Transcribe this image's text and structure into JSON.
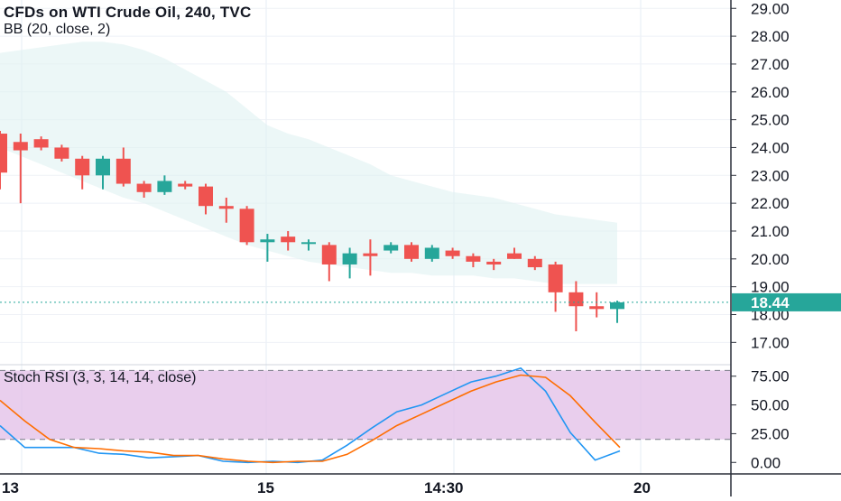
{
  "header": {
    "title": "CFDs on WTI Crude Oil, 240, TVC",
    "indicator": "BB (20, close, 2)",
    "oscillator": "Stoch RSI (3, 3, 14, 14, close)"
  },
  "price_axis": {
    "ticks": [
      "29.00",
      "28.00",
      "27.00",
      "26.00",
      "25.00",
      "24.00",
      "23.00",
      "22.00",
      "21.00",
      "20.00",
      "19.00",
      "18.00",
      "17.00"
    ],
    "last_price_label": "18.44"
  },
  "osc_axis": {
    "ticks": [
      "75.00",
      "50.00",
      "25.00",
      "0.00"
    ]
  },
  "time_axis": {
    "ticks": [
      "13",
      "15",
      "14:30",
      "20"
    ]
  },
  "colors": {
    "up": "#26a69a",
    "down": "#ef5350",
    "bb_fill": "#e0f2f1",
    "stoch_k": "#2196f3",
    "stoch_d": "#ff6d00",
    "osc_band": "#e1bee7",
    "last_price": "#26a69a"
  },
  "chart_data": [
    {
      "type": "candlestick",
      "title": "CFDs on WTI Crude Oil, 240, TVC",
      "ylim": [
        16.2,
        29.3
      ],
      "candles": [
        {
          "o": 24.5,
          "h": 24.6,
          "l": 22.5,
          "c": 23.1
        },
        {
          "o": 24.2,
          "h": 24.5,
          "l": 22.0,
          "c": 23.9
        },
        {
          "o": 24.3,
          "h": 24.4,
          "l": 23.9,
          "c": 24.0
        },
        {
          "o": 24.0,
          "h": 24.1,
          "l": 23.5,
          "c": 23.6
        },
        {
          "o": 23.6,
          "h": 23.7,
          "l": 22.5,
          "c": 23.0
        },
        {
          "o": 23.0,
          "h": 23.7,
          "l": 22.5,
          "c": 23.6
        },
        {
          "o": 23.6,
          "h": 24.0,
          "l": 22.6,
          "c": 22.7
        },
        {
          "o": 22.7,
          "h": 22.8,
          "l": 22.2,
          "c": 22.4
        },
        {
          "o": 22.4,
          "h": 23.0,
          "l": 22.3,
          "c": 22.8
        },
        {
          "o": 22.7,
          "h": 22.8,
          "l": 22.5,
          "c": 22.6
        },
        {
          "o": 22.6,
          "h": 22.7,
          "l": 21.6,
          "c": 21.9
        },
        {
          "o": 21.9,
          "h": 22.2,
          "l": 21.3,
          "c": 21.8
        },
        {
          "o": 21.8,
          "h": 21.9,
          "l": 20.5,
          "c": 20.6
        },
        {
          "o": 20.6,
          "h": 20.9,
          "l": 19.9,
          "c": 20.7
        },
        {
          "o": 20.8,
          "h": 21.0,
          "l": 20.3,
          "c": 20.6
        },
        {
          "o": 20.6,
          "h": 20.7,
          "l": 20.3,
          "c": 20.6
        },
        {
          "o": 20.5,
          "h": 20.6,
          "l": 19.2,
          "c": 19.8
        },
        {
          "o": 19.8,
          "h": 20.4,
          "l": 19.3,
          "c": 20.2
        },
        {
          "o": 20.2,
          "h": 20.7,
          "l": 19.4,
          "c": 20.1
        },
        {
          "o": 20.3,
          "h": 20.6,
          "l": 20.2,
          "c": 20.5
        },
        {
          "o": 20.5,
          "h": 20.6,
          "l": 19.9,
          "c": 20.0
        },
        {
          "o": 20.0,
          "h": 20.5,
          "l": 19.9,
          "c": 20.4
        },
        {
          "o": 20.3,
          "h": 20.4,
          "l": 20.0,
          "c": 20.1
        },
        {
          "o": 20.1,
          "h": 20.2,
          "l": 19.7,
          "c": 19.9
        },
        {
          "o": 19.9,
          "h": 20.0,
          "l": 19.6,
          "c": 19.8
        },
        {
          "o": 20.2,
          "h": 20.4,
          "l": 20.0,
          "c": 20.0
        },
        {
          "o": 20.0,
          "h": 20.1,
          "l": 19.6,
          "c": 19.7
        },
        {
          "o": 19.8,
          "h": 19.9,
          "l": 18.1,
          "c": 18.8
        },
        {
          "o": 18.8,
          "h": 19.2,
          "l": 17.4,
          "c": 18.3
        },
        {
          "o": 18.3,
          "h": 18.8,
          "l": 17.9,
          "c": 18.2
        },
        {
          "o": 18.2,
          "h": 18.5,
          "l": 17.7,
          "c": 18.44
        }
      ],
      "bollinger": {
        "upper": [
          27.4,
          27.5,
          27.6,
          27.7,
          27.8,
          27.8,
          27.7,
          27.5,
          27.2,
          26.8,
          26.4,
          26.0,
          25.4,
          24.8,
          24.5,
          24.3,
          24.0,
          23.7,
          23.4,
          23.0,
          22.8,
          22.6,
          22.4,
          22.3,
          22.2,
          22.0,
          21.8,
          21.6,
          21.5,
          21.4,
          21.3
        ],
        "lower": [
          24.0,
          23.7,
          23.4,
          23.1,
          22.8,
          22.5,
          22.2,
          22.0,
          21.7,
          21.4,
          21.1,
          20.8,
          20.5,
          20.3,
          20.1,
          19.9,
          19.8,
          19.7,
          19.6,
          19.5,
          19.5,
          19.4,
          19.4,
          19.4,
          19.3,
          19.3,
          19.2,
          19.1,
          19.1,
          19.1,
          19.1
        ]
      },
      "last_price": 18.44
    },
    {
      "type": "line",
      "title": "Stoch RSI (3, 3, 14, 14, close)",
      "ylim": [
        -10,
        85
      ],
      "band": [
        20,
        80
      ],
      "series": [
        {
          "values": [
            32,
            13,
            13,
            13,
            8,
            7,
            4,
            5,
            6,
            1,
            0,
            1,
            0,
            2,
            15,
            30,
            44,
            50,
            60,
            70,
            75,
            82,
            62,
            26,
            2,
            10
          ]
        },
        {
          "values": [
            54,
            36,
            20,
            13,
            12,
            10,
            9,
            6,
            6,
            3,
            1,
            0,
            1,
            1,
            7,
            19,
            32,
            42,
            52,
            62,
            70,
            76,
            74,
            58,
            35,
            13
          ]
        }
      ]
    }
  ]
}
